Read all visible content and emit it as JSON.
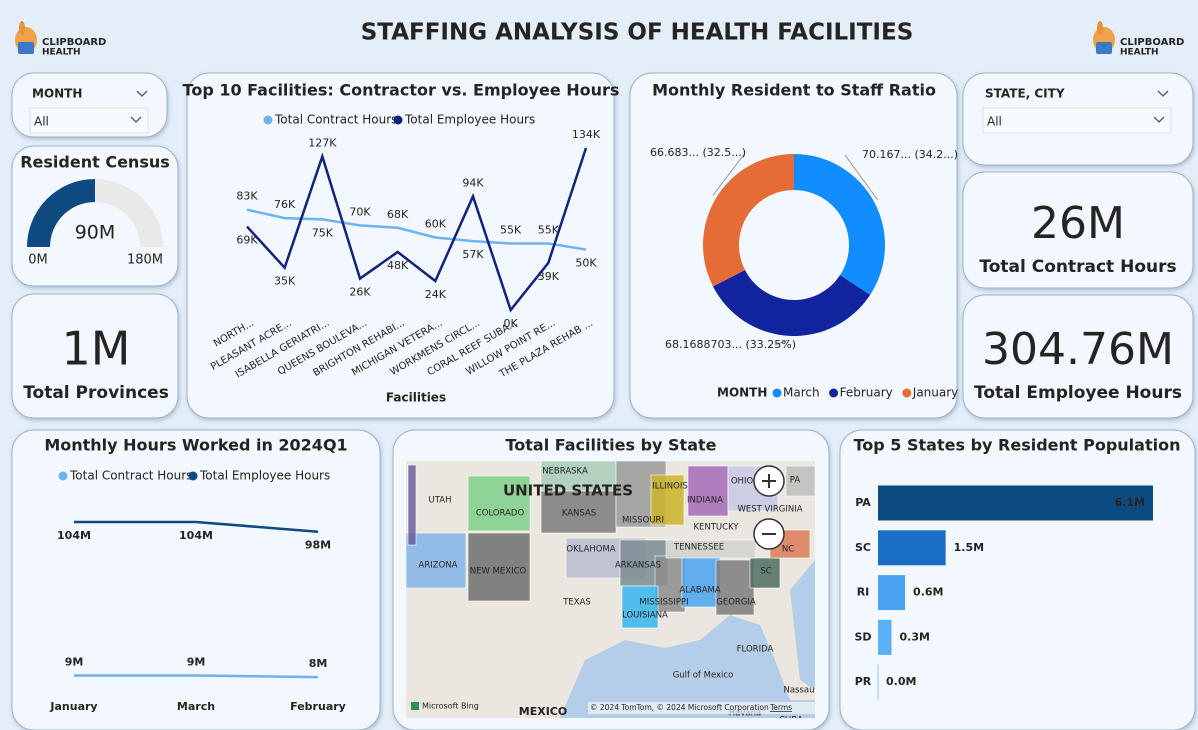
{
  "header": {
    "title": "STAFFING ANALYSIS OF HEALTH FACILITIES",
    "logo_name": "CLIPBOARD",
    "logo_sub": "HEALTH"
  },
  "slicers": [
    {
      "label": "MONTH",
      "value": "All"
    },
    {
      "label": "STATE, CITY",
      "value": "All"
    }
  ],
  "cards": [
    {
      "label": "Total Provinces",
      "value": "1M"
    },
    {
      "label": "Total Contract Hours",
      "value": "26M"
    },
    {
      "label": "Total Employee Hours",
      "value": "304.76M"
    }
  ],
  "chart_data": [
    {
      "type": "gauge",
      "title": "Resident Census",
      "value": 90,
      "value_label": "90M",
      "min": {
        "value": 0,
        "label": "0M"
      },
      "max": {
        "value": 180,
        "label": "180M"
      },
      "color": "#0e4a80",
      "track_color": "#e9e9e9"
    },
    {
      "type": "line",
      "title": "Top 10 Facilities: Contractor vs. Employee Hours",
      "x_label": "Facilities",
      "legend": "top",
      "categories": [
        "NORTH...",
        "PLEASANT ACRE...",
        "ISABELLA GERIATRI...",
        "QUEENS BOULEVA...",
        "BRIGHTON REHABI...",
        "MICHIGAN VETERA...",
        "WORKMENS CIRCL...",
        "CORAL REEF SUBA...",
        "WILLOW POINT RE...",
        "THE PLAZA REHAB ..."
      ],
      "series": [
        {
          "name": "Total Contract Hours",
          "color": "#6cb4f0",
          "values": [
            83,
            76,
            75,
            70,
            68,
            60,
            57,
            55,
            55,
            50
          ],
          "value_labels": [
            "83K",
            "76K",
            "75K",
            "70K",
            "68K",
            "60K",
            "57K",
            "55K",
            "55K",
            "50K"
          ]
        },
        {
          "name": "Total Employee Hours",
          "color": "#12237e",
          "values": [
            69,
            35,
            127,
            26,
            48,
            24,
            94,
            0,
            39,
            134
          ],
          "value_labels": [
            "69K",
            "35K",
            "127K",
            "26K",
            "48K",
            "24K",
            "94K",
            "0K",
            "39K",
            "134K"
          ]
        }
      ]
    },
    {
      "type": "donut",
      "title": "Monthly Resident to Staff Ratio",
      "legend_title": "MONTH",
      "legend": "bottom",
      "categories": [
        "March",
        "February",
        "January"
      ],
      "values": [
        70.167,
        68.1688703,
        66.683
      ],
      "value_labels": [
        "70.167... (34.2...)",
        "68.1688703... (33.25%)",
        "66.683... (32.5...)"
      ],
      "colors": [
        "#118dff",
        "#12239e",
        "#e66c37"
      ]
    },
    {
      "type": "line",
      "title": "Monthly Hours Worked in 2024Q1",
      "legend": "top",
      "categories": [
        "January",
        "March",
        "February"
      ],
      "series": [
        {
          "name": "Total Contract Hours",
          "color": "#6cb4f0",
          "values": [
            9,
            9,
            8
          ],
          "value_labels": [
            "9M",
            "9M",
            "8M"
          ]
        },
        {
          "name": "Total Employee Hours",
          "color": "#0e4a80",
          "values": [
            104,
            104,
            98
          ],
          "value_labels": [
            "104M",
            "104M",
            "98M"
          ]
        }
      ]
    },
    {
      "type": "map",
      "title": "Total Facilities by State",
      "labels": [
        "UNITED STATES",
        "NEBRASKA",
        "UTAH",
        "COLORADO",
        "KANSAS",
        "MISSOURI",
        "ILLINOIS",
        "INDIANA",
        "OHIO",
        "PA",
        "WEST VIRGINIA",
        "KENTUCKY",
        "TENNESSEE",
        "NC",
        "SC",
        "OKLAHOMA",
        "ARKANSAS",
        "ARIZONA",
        "NEW MEXICO",
        "TEXAS",
        "MISSISSIPPI",
        "ALABAMA",
        "GEORGIA",
        "LOUISIANA",
        "FLORIDA",
        "Gulf of Mexico",
        "MEXICO",
        "Nassau",
        "Havana",
        "CUBA"
      ],
      "attribution": "© 2024 TomTom, © 2024 Microsoft Corporation",
      "terms": "Terms",
      "provider": "Microsoft Bing"
    },
    {
      "type": "bar",
      "orientation": "horizontal",
      "title": "Top 5 States by Resident Population",
      "categories": [
        "PA",
        "SC",
        "RI",
        "SD",
        "PR"
      ],
      "values": [
        6.1,
        1.5,
        0.6,
        0.3,
        0
      ],
      "value_labels": [
        "6.1M",
        "1.5M",
        "0.6M",
        "0.3M",
        "0.0M"
      ],
      "colors": [
        "#0d4a80",
        "#1a6fc4",
        "#4aa3f0",
        "#5ab0f5",
        "#8ac8fa"
      ]
    }
  ]
}
